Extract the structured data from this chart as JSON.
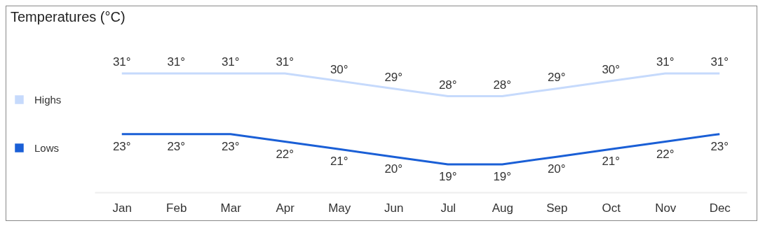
{
  "chart_data": {
    "type": "line",
    "title": "Temperatures (°C)",
    "categories": [
      "Jan",
      "Feb",
      "Mar",
      "Apr",
      "May",
      "Jun",
      "Jul",
      "Aug",
      "Sep",
      "Oct",
      "Nov",
      "Dec"
    ],
    "series": [
      {
        "name": "Highs",
        "color": "#c6dafc",
        "values": [
          31,
          31,
          31,
          31,
          30,
          29,
          28,
          28,
          29,
          30,
          31,
          31
        ],
        "value_labels": [
          "31°",
          "31°",
          "31°",
          "31°",
          "30°",
          "29°",
          "28°",
          "28°",
          "29°",
          "30°",
          "31°",
          "31°"
        ]
      },
      {
        "name": "Lows",
        "color": "#1a5fd6",
        "values": [
          23,
          23,
          23,
          22,
          21,
          20,
          19,
          19,
          20,
          21,
          22,
          23
        ],
        "value_labels": [
          "23°",
          "23°",
          "23°",
          "22°",
          "21°",
          "20°",
          "19°",
          "19°",
          "20°",
          "21°",
          "22°",
          "23°"
        ]
      }
    ],
    "legend": "left",
    "grid": false
  }
}
